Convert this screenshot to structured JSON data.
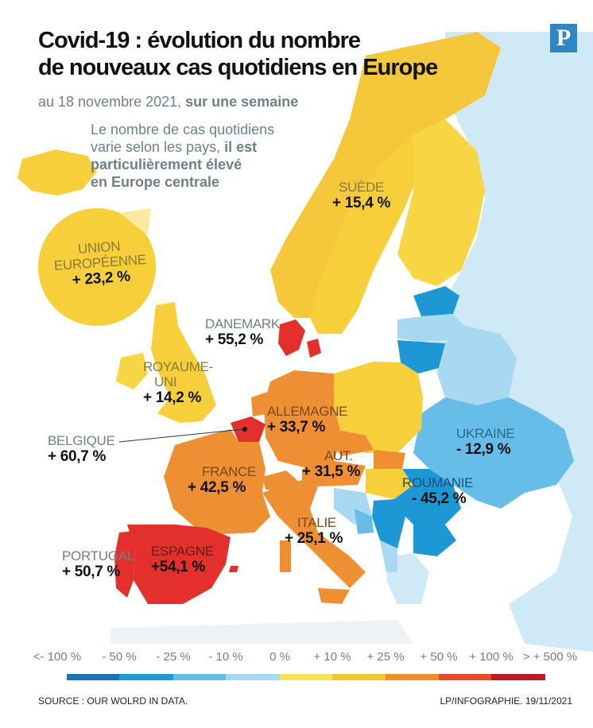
{
  "title_line1": "Covid-19 : évolution du nombre",
  "title_line2": "de nouveaux cas quotidiens en Europe",
  "subtitle_prefix": "au 18 novembre 2021,",
  "subtitle_bold": "sur une semaine",
  "intro_line1": "Le nombre de cas quotidiens",
  "intro_line2_prefix": "varie selon les pays,",
  "intro_line2_bold": "il est",
  "intro_line3": "particulièrement élevé",
  "intro_line4": "en Europe centrale",
  "logo_letter": "P",
  "eu_badge": {
    "line1": "UNION",
    "line2": "EUROPÉENNE",
    "value": "+ 23,2 %"
  },
  "countries": {
    "suede": {
      "name": "SUÈDE",
      "value": "+ 15,4 %"
    },
    "danemark": {
      "name": "DANEMARK",
      "value": "+ 55,2 %"
    },
    "royaume_uni": {
      "name1": "ROYAUME-",
      "name2": "UNI",
      "value": "+ 14,2 %"
    },
    "belgique": {
      "name": "BELGIQUE",
      "value": "+ 60,7 %"
    },
    "allemagne": {
      "name": "ALLEMAGNE",
      "value": "+ 33,7 %"
    },
    "ukraine": {
      "name": "UKRAINE",
      "value": "- 12,9 %"
    },
    "france": {
      "name": "FRANCE",
      "value": "+ 42,5 %"
    },
    "autriche": {
      "name": "AUT.",
      "value": "+ 31,5 %"
    },
    "roumanie": {
      "name": "ROUMANIE",
      "value": "- 45,2 %"
    },
    "italie": {
      "name": "ITALIE",
      "value": "+ 25,1 %"
    },
    "portugal": {
      "name": "PORTUGAL",
      "value": "+ 50,7 %"
    },
    "espagne": {
      "name": "ESPAGNE",
      "value": "+54,1 %"
    }
  },
  "legend": {
    "labels": [
      "<- 100 %",
      "- 50 %",
      "- 25 %",
      "- 10 %",
      "0 %",
      "+ 10 %",
      "+ 25 %",
      "+ 50 %",
      "+ 100 %",
      "> + 500 %"
    ],
    "colors": [
      "#1d74b3",
      "#1f9ad6",
      "#62bde6",
      "#a8d9f1",
      "#f7e35a",
      "#f5c72f",
      "#ef8f2a",
      "#e84b2a",
      "#b61e24"
    ]
  },
  "source": "SOURCE : OUR WOLRD IN DATA.",
  "credit": "LP/INFOGRAPHIE.  19/11/2021",
  "colors": {
    "sea": "#ffffff",
    "land_neutral": "#eef2f4",
    "yellow": "#f6cf3a",
    "orange": "#ee8f34",
    "red": "#e3302c",
    "light_blue": "#a8d9f1",
    "mid_blue": "#65bde8",
    "dark_blue": "#1e97d5",
    "text_gray": "#6f8089"
  }
}
